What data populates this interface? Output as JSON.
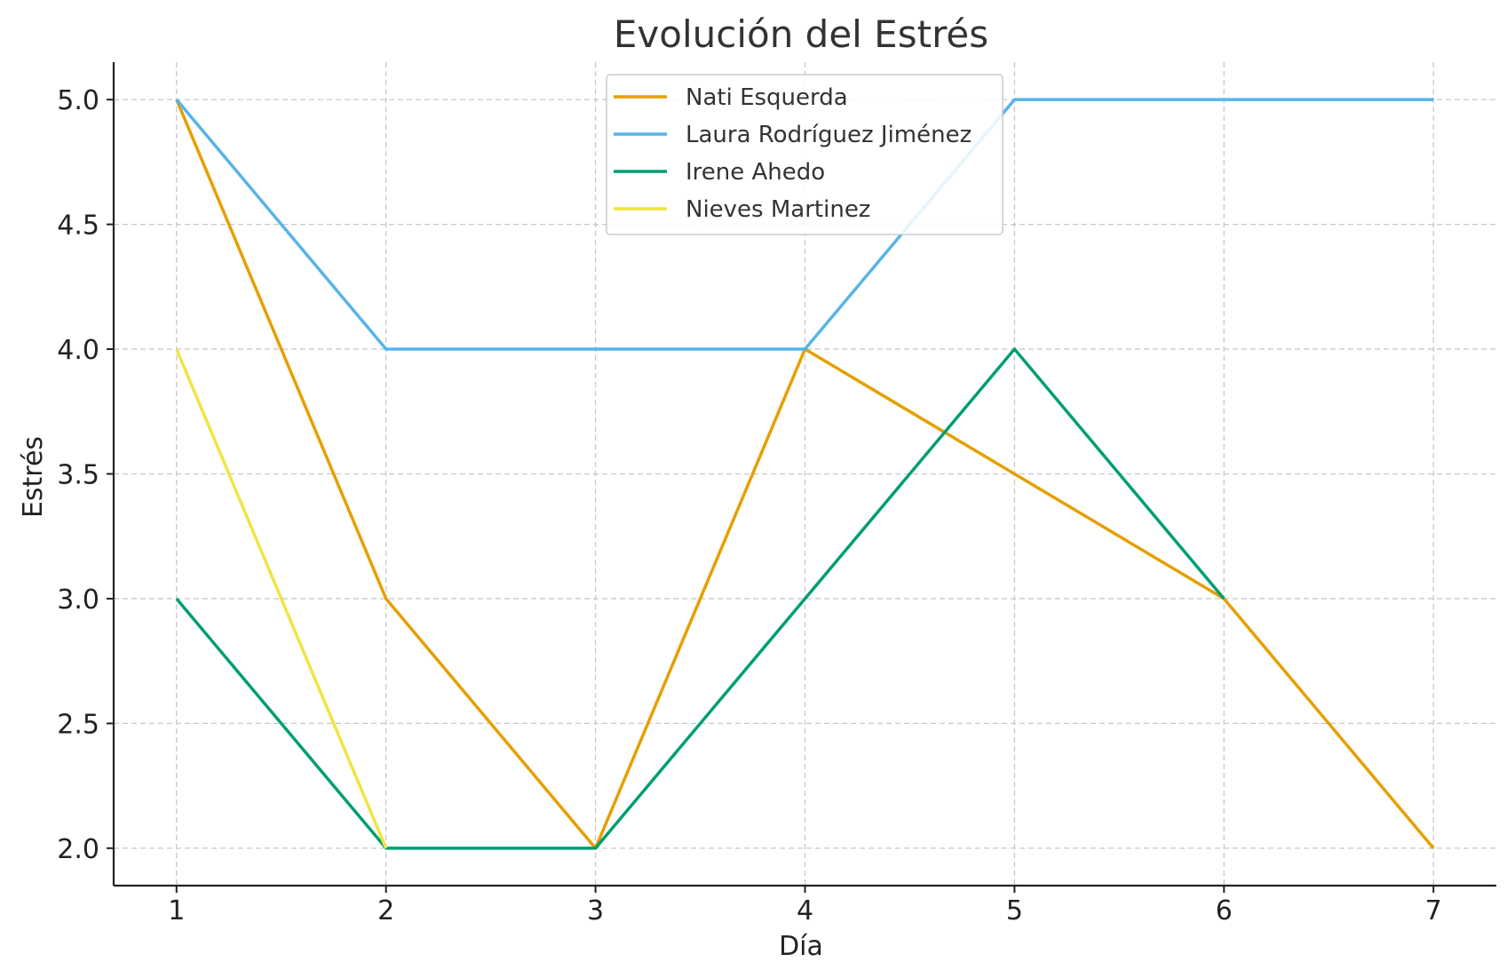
{
  "chart_data": {
    "type": "line",
    "title": "Evolución del Estrés",
    "xlabel": "Día",
    "ylabel": "Estrés",
    "x_ticks": [
      "1",
      "2",
      "3",
      "4",
      "5",
      "6",
      "7"
    ],
    "y_ticks": [
      "2.0",
      "2.5",
      "3.0",
      "3.5",
      "4.0",
      "4.5",
      "5.0"
    ],
    "xlim": [
      0.7,
      7.3
    ],
    "ylim": [
      1.85,
      5.15
    ],
    "grid": true,
    "legend_position": "top-center",
    "series": [
      {
        "name": "Nati Esquerda",
        "color": "#E69F00",
        "x": [
          1,
          2,
          3,
          4,
          5,
          6,
          7
        ],
        "y": [
          5,
          3,
          2,
          4,
          3.5,
          3,
          2
        ]
      },
      {
        "name": "Laura Rodríguez Jiménez",
        "color": "#56B4E9",
        "x": [
          1,
          2,
          3,
          4,
          5,
          6,
          7
        ],
        "y": [
          5,
          4,
          4,
          4,
          5,
          5,
          5
        ]
      },
      {
        "name": "Irene Ahedo",
        "color": "#009E73",
        "x": [
          1,
          2,
          3,
          4,
          5,
          6
        ],
        "y": [
          3,
          2,
          2,
          3,
          4,
          3
        ]
      },
      {
        "name": "Nieves Martinez",
        "color": "#F0E442",
        "x": [
          1,
          2
        ],
        "y": [
          4,
          2
        ]
      }
    ]
  }
}
